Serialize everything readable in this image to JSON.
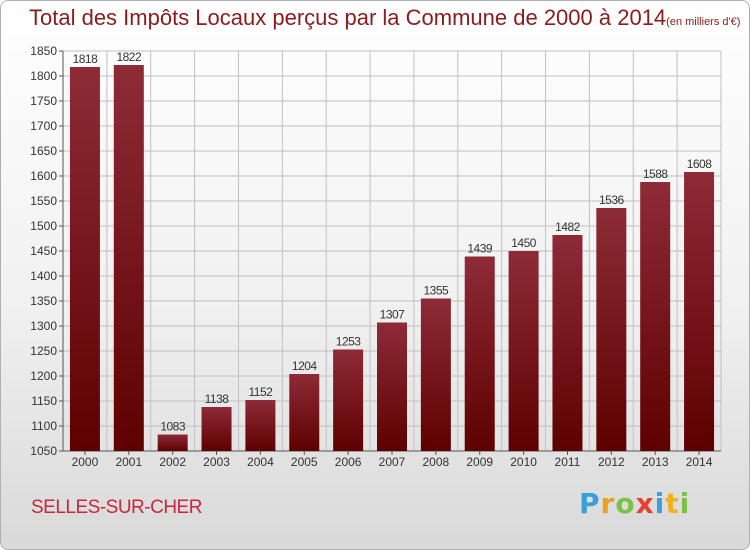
{
  "title": "Total des Impôts Locaux perçus par la Commune de 2000 à 2014",
  "title_unit": "(en milliers d'€)",
  "commune_label": "SELLES-SUR-CHER",
  "logo_text": "Proxiti",
  "colors": {
    "bar_top": "#8e2b37",
    "bar_bottom": "#5e0000",
    "title": "#8a1c1c",
    "commune": "#c8283a",
    "grid": "#c0c0c0"
  },
  "chart_data": {
    "type": "bar",
    "categories": [
      "2000",
      "2001",
      "2002",
      "2003",
      "2004",
      "2005",
      "2006",
      "2007",
      "2008",
      "2009",
      "2010",
      "2011",
      "2012",
      "2013",
      "2014"
    ],
    "values": [
      1818,
      1822,
      1083,
      1138,
      1152,
      1204,
      1253,
      1307,
      1355,
      1439,
      1450,
      1482,
      1536,
      1588,
      1608
    ],
    "data_labels": [
      "1818",
      "1822",
      "1083",
      "1138",
      "1152",
      "1204",
      "1253",
      "1307",
      "1355",
      "1439",
      "1450",
      "1482",
      "1536",
      "1588",
      "1608"
    ],
    "ylim": [
      1050,
      1850
    ],
    "yticks": [
      1050,
      1100,
      1150,
      1200,
      1250,
      1300,
      1350,
      1400,
      1450,
      1500,
      1550,
      1600,
      1650,
      1700,
      1750,
      1800,
      1850
    ],
    "grid": true,
    "legend": "none",
    "xlabel": "",
    "ylabel": ""
  }
}
